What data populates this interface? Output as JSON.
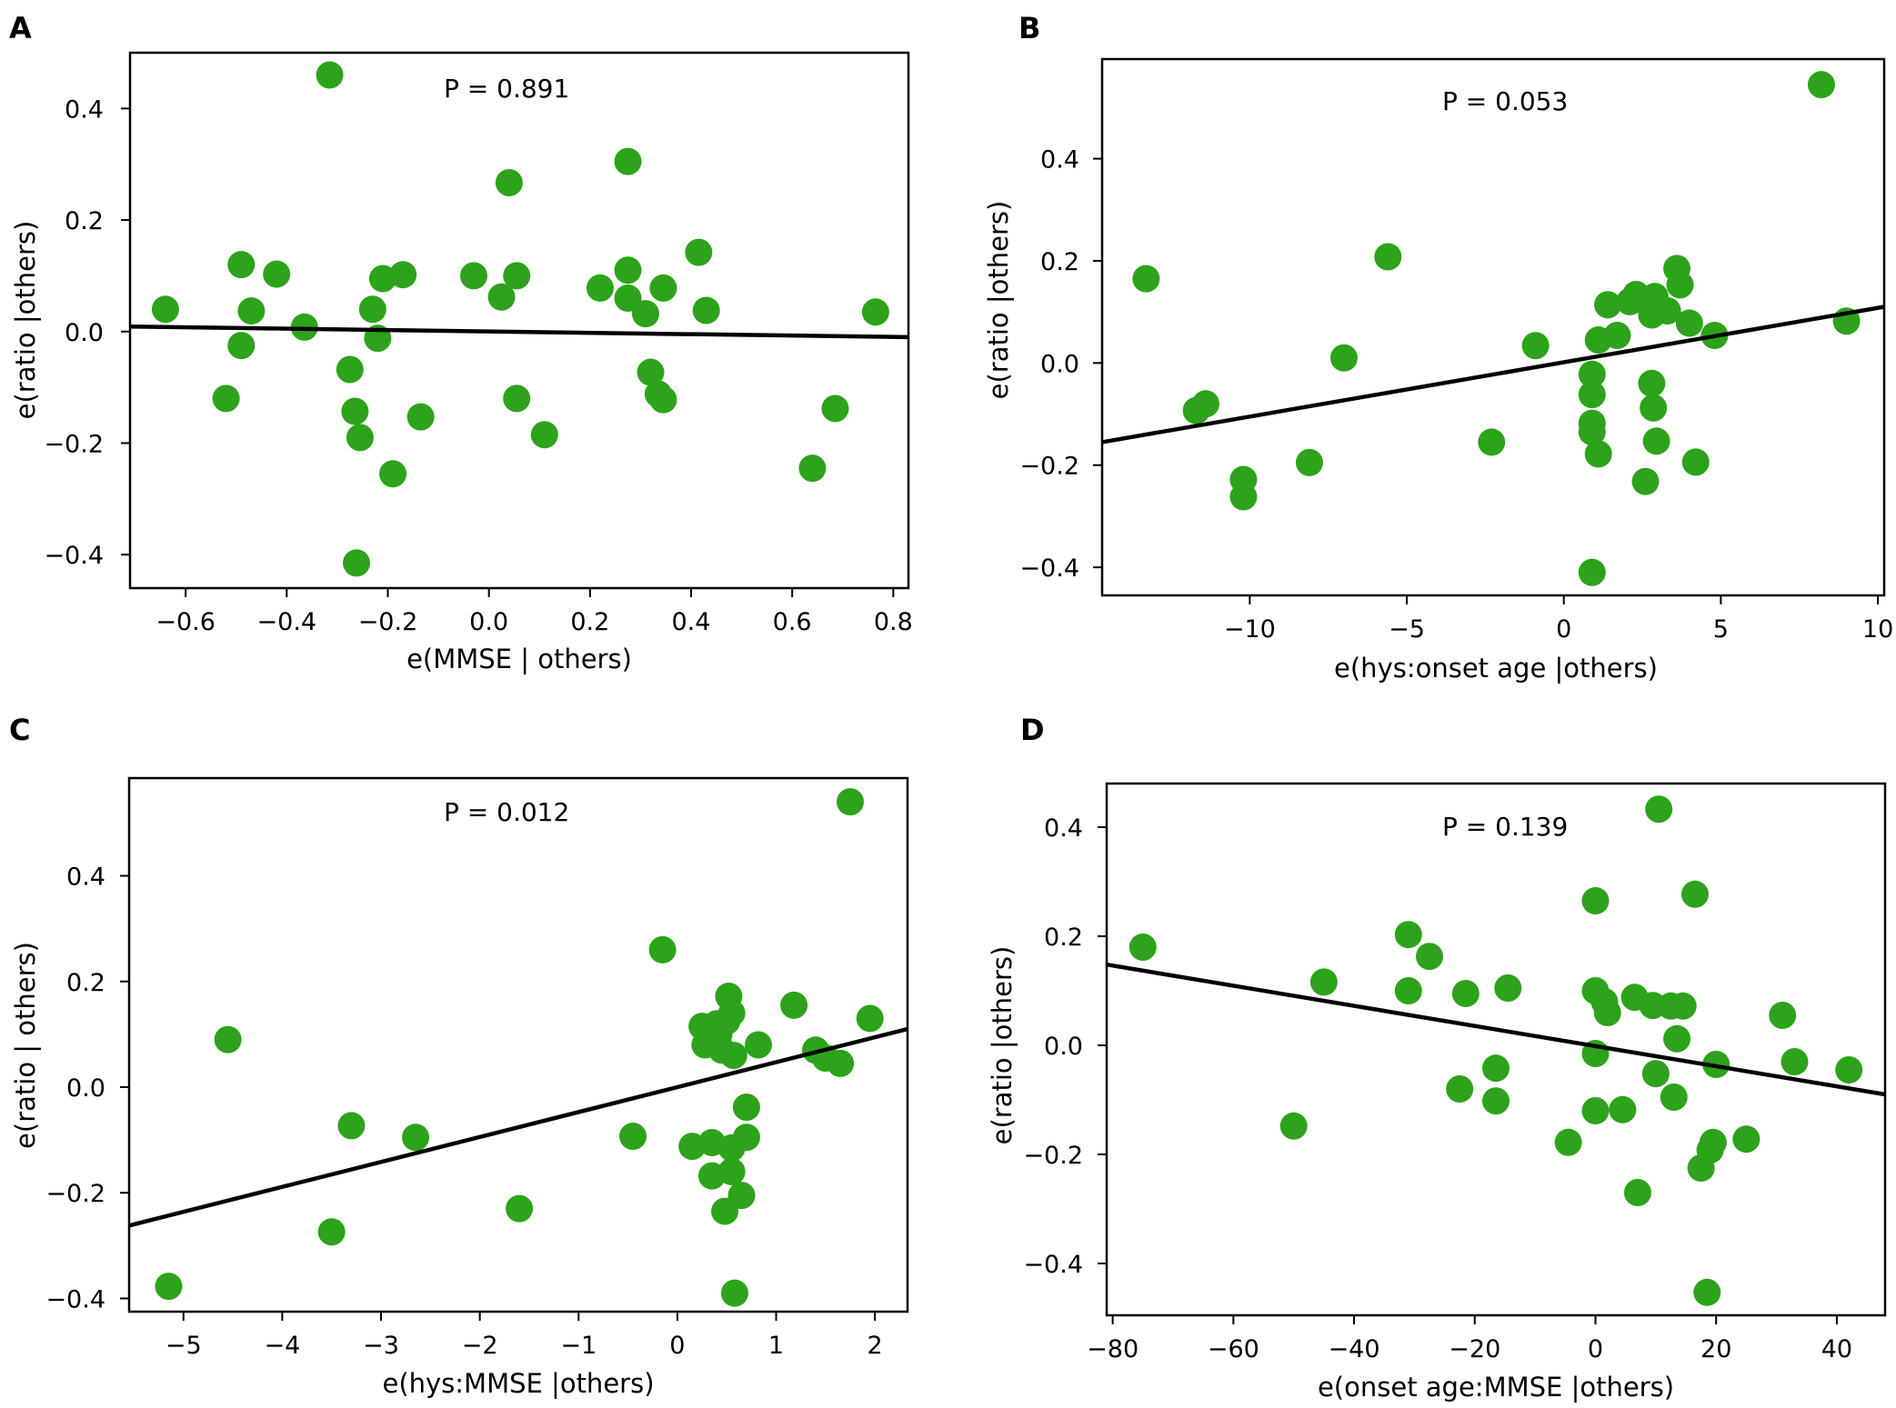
{
  "figure": {
    "marker_color": "#2ca31a",
    "line_color": "#000000"
  },
  "chart_data": [
    {
      "type": "scatter",
      "panel_label": "A",
      "annotation": "P = 0.891",
      "xlabel": "e(MMSE | others)",
      "ylabel": "e(ratio |others)",
      "xlim": [
        -0.71,
        0.83
      ],
      "ylim": [
        -0.46,
        0.5
      ],
      "xticks": [
        -0.6,
        -0.4,
        -0.2,
        0.0,
        0.2,
        0.4,
        0.6,
        0.8
      ],
      "xtick_labels": [
        "−0.6",
        "−0.4",
        "−0.2",
        "0.0",
        "0.2",
        "0.4",
        "0.6",
        "0.8"
      ],
      "yticks": [
        -0.4,
        -0.2,
        0.0,
        0.2,
        0.4
      ],
      "ytick_labels": [
        "−0.4",
        "−0.2",
        "0.0",
        "0.2",
        "0.4"
      ],
      "fit_line": {
        "x": [
          -0.71,
          0.83
        ],
        "y": [
          0.009,
          -0.01
        ]
      },
      "points": [
        [
          -0.64,
          0.04
        ],
        [
          -0.52,
          -0.12
        ],
        [
          -0.49,
          0.12
        ],
        [
          -0.49,
          -0.025
        ],
        [
          -0.47,
          0.037
        ],
        [
          -0.42,
          0.103
        ],
        [
          -0.365,
          0.008
        ],
        [
          -0.315,
          0.46
        ],
        [
          -0.275,
          -0.068
        ],
        [
          -0.265,
          -0.143
        ],
        [
          -0.255,
          -0.19
        ],
        [
          -0.262,
          -0.415
        ],
        [
          -0.23,
          0.04
        ],
        [
          -0.22,
          -0.012
        ],
        [
          -0.21,
          0.095
        ],
        [
          -0.19,
          -0.255
        ],
        [
          -0.17,
          0.102
        ],
        [
          -0.135,
          -0.153
        ],
        [
          -0.03,
          0.1
        ],
        [
          0.025,
          0.062
        ],
        [
          0.04,
          0.267
        ],
        [
          0.055,
          0.1
        ],
        [
          0.055,
          -0.12
        ],
        [
          0.11,
          -0.185
        ],
        [
          0.22,
          0.078
        ],
        [
          0.275,
          0.305
        ],
        [
          0.275,
          0.11
        ],
        [
          0.275,
          0.06
        ],
        [
          0.31,
          0.032
        ],
        [
          0.32,
          -0.073
        ],
        [
          0.335,
          -0.112
        ],
        [
          0.345,
          -0.122
        ],
        [
          0.345,
          0.078
        ],
        [
          0.415,
          0.142
        ],
        [
          0.43,
          0.038
        ],
        [
          0.64,
          -0.245
        ],
        [
          0.685,
          -0.138
        ],
        [
          0.765,
          0.035
        ]
      ]
    },
    {
      "type": "scatter",
      "panel_label": "B",
      "annotation": "P = 0.053",
      "xlabel": "e(hys:onset  age |others)",
      "ylabel": "e(ratio |others)",
      "xlim": [
        -14.7,
        10.2
      ],
      "ylim": [
        -0.455,
        0.595
      ],
      "xticks": [
        -10,
        -5,
        0,
        5,
        10
      ],
      "xtick_labels": [
        "−10",
        "−5",
        "0",
        "5",
        "10"
      ],
      "yticks": [
        -0.4,
        -0.2,
        0.0,
        0.2,
        0.4
      ],
      "ytick_labels": [
        "−0.4",
        "−0.2",
        "0.0",
        "0.2",
        "0.4"
      ],
      "fit_line": {
        "x": [
          -14.7,
          10.2
        ],
        "y": [
          -0.155,
          0.11
        ]
      },
      "points": [
        [
          -13.3,
          0.165
        ],
        [
          -11.7,
          -0.093
        ],
        [
          -11.4,
          -0.08
        ],
        [
          -10.2,
          -0.228
        ],
        [
          -10.2,
          -0.262
        ],
        [
          -8.1,
          -0.195
        ],
        [
          -7.0,
          0.01
        ],
        [
          -5.6,
          0.208
        ],
        [
          -2.3,
          -0.155
        ],
        [
          -0.9,
          0.034
        ],
        [
          0.9,
          -0.022
        ],
        [
          0.9,
          -0.062
        ],
        [
          0.9,
          -0.118
        ],
        [
          0.9,
          -0.135
        ],
        [
          0.9,
          -0.41
        ],
        [
          1.1,
          -0.178
        ],
        [
          1.1,
          0.045
        ],
        [
          1.4,
          0.114
        ],
        [
          1.7,
          0.054
        ],
        [
          2.1,
          0.12
        ],
        [
          2.3,
          0.134
        ],
        [
          2.6,
          0.12
        ],
        [
          2.6,
          -0.232
        ],
        [
          2.8,
          0.104
        ],
        [
          2.8,
          0.094
        ],
        [
          2.9,
          0.13
        ],
        [
          2.8,
          -0.04
        ],
        [
          2.85,
          -0.088
        ],
        [
          2.95,
          -0.153
        ],
        [
          3.3,
          0.102
        ],
        [
          3.6,
          0.185
        ],
        [
          3.7,
          0.153
        ],
        [
          4.0,
          0.078
        ],
        [
          4.2,
          -0.194
        ],
        [
          4.8,
          0.054
        ],
        [
          8.2,
          0.545
        ],
        [
          9.0,
          0.082
        ]
      ]
    },
    {
      "type": "scatter",
      "panel_label": "C",
      "annotation": "P = 0.012",
      "xlabel": "e(hys:MMSE |others)",
      "ylabel": "e(ratio | others)",
      "xlim": [
        -5.55,
        2.33
      ],
      "ylim": [
        -0.425,
        0.585
      ],
      "xticks": [
        -5,
        -4,
        -3,
        -2,
        -1,
        0,
        1,
        2
      ],
      "xtick_labels": [
        "−5",
        "−4",
        "−3",
        "−2",
        "−1",
        "0",
        "1",
        "2"
      ],
      "yticks": [
        -0.4,
        -0.2,
        0.0,
        0.2,
        0.4
      ],
      "ytick_labels": [
        "−0.4",
        "−0.2",
        "0.0",
        "0.2",
        "0.4"
      ],
      "fit_line": {
        "x": [
          -5.55,
          2.33
        ],
        "y": [
          -0.262,
          0.11
        ]
      },
      "points": [
        [
          -5.15,
          -0.377
        ],
        [
          -4.55,
          0.09
        ],
        [
          -3.5,
          -0.274
        ],
        [
          -3.3,
          -0.073
        ],
        [
          -2.65,
          -0.095
        ],
        [
          -1.6,
          -0.23
        ],
        [
          -0.45,
          -0.093
        ],
        [
          -0.15,
          0.26
        ],
        [
          0.15,
          -0.112
        ],
        [
          0.25,
          0.115
        ],
        [
          0.28,
          0.08
        ],
        [
          0.35,
          -0.105
        ],
        [
          0.35,
          -0.168
        ],
        [
          0.4,
          0.12
        ],
        [
          0.42,
          0.1
        ],
        [
          0.45,
          0.07
        ],
        [
          0.48,
          -0.235
        ],
        [
          0.5,
          0.125
        ],
        [
          0.52,
          0.172
        ],
        [
          0.55,
          0.14
        ],
        [
          0.55,
          -0.16
        ],
        [
          0.55,
          -0.115
        ],
        [
          0.57,
          0.06
        ],
        [
          0.58,
          -0.39
        ],
        [
          0.65,
          -0.205
        ],
        [
          0.7,
          -0.095
        ],
        [
          0.7,
          -0.038
        ],
        [
          0.82,
          0.08
        ],
        [
          1.18,
          0.155
        ],
        [
          1.4,
          0.07
        ],
        [
          1.5,
          0.055
        ],
        [
          1.65,
          0.045
        ],
        [
          1.75,
          0.54
        ],
        [
          1.95,
          0.13
        ]
      ]
    },
    {
      "type": "scatter",
      "panel_label": "D",
      "annotation": "P = 0.139",
      "xlabel": "e(onset  age:MMSE |others)",
      "ylabel": "e(ratio |others)",
      "xlim": [
        -81,
        48
      ],
      "ylim": [
        -0.495,
        0.48
      ],
      "xticks": [
        -80,
        -60,
        -40,
        -20,
        0,
        20,
        40
      ],
      "xtick_labels": [
        "−80",
        "−60",
        "−40",
        "−20",
        "0",
        "20",
        "40"
      ],
      "yticks": [
        -0.4,
        -0.2,
        0.0,
        0.2,
        0.4
      ],
      "ytick_labels": [
        "−0.4",
        "−0.2",
        "0.0",
        "0.2",
        "0.4"
      ],
      "fit_line": {
        "x": [
          -81,
          48
        ],
        "y": [
          0.148,
          -0.09
        ]
      },
      "points": [
        [
          -75,
          0.18
        ],
        [
          -50,
          -0.148
        ],
        [
          -45,
          0.116
        ],
        [
          -31,
          0.203
        ],
        [
          -31,
          0.1
        ],
        [
          -27.5,
          0.163
        ],
        [
          -22.5,
          -0.08
        ],
        [
          -21.5,
          0.095
        ],
        [
          -16.5,
          -0.042
        ],
        [
          -16.5,
          -0.102
        ],
        [
          -14.5,
          0.105
        ],
        [
          -4.5,
          -0.178
        ],
        [
          0,
          0.265
        ],
        [
          0,
          0.1
        ],
        [
          0,
          -0.015
        ],
        [
          0,
          -0.12
        ],
        [
          1.5,
          0.08
        ],
        [
          2,
          0.06
        ],
        [
          4.5,
          -0.118
        ],
        [
          6.5,
          0.088
        ],
        [
          7,
          -0.27
        ],
        [
          9.5,
          0.073
        ],
        [
          10,
          -0.052
        ],
        [
          10.5,
          0.433
        ],
        [
          12.5,
          0.072
        ],
        [
          13,
          -0.095
        ],
        [
          13.5,
          0.012
        ],
        [
          14.5,
          0.072
        ],
        [
          16.5,
          0.277
        ],
        [
          17.5,
          -0.225
        ],
        [
          18.5,
          -0.453
        ],
        [
          19,
          -0.192
        ],
        [
          19.5,
          -0.178
        ],
        [
          20,
          -0.035
        ],
        [
          25,
          -0.172
        ],
        [
          31,
          0.055
        ],
        [
          33,
          -0.03
        ],
        [
          42,
          -0.045
        ]
      ]
    }
  ]
}
